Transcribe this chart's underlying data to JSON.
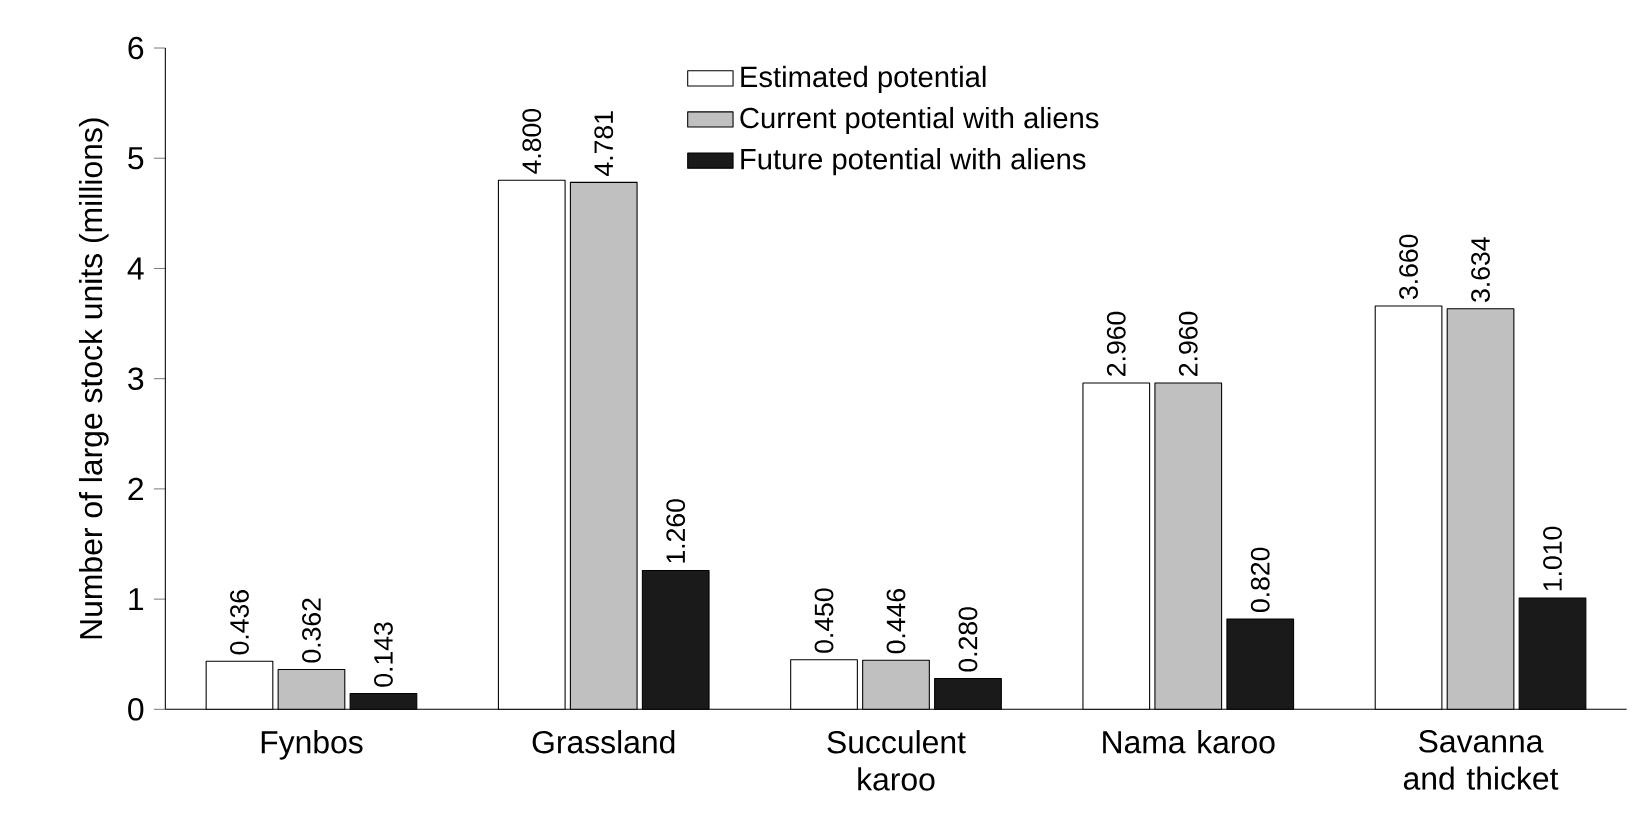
{
  "chart_data": {
    "type": "bar",
    "ylabel": "Number of large stock units (millions)",
    "categories": [
      "Fynbos",
      "Grassland",
      "Succulent karoo",
      "Nama karoo",
      "Savanna and thicket"
    ],
    "series": [
      {
        "name": "Estimated potential",
        "color": "#ffffff",
        "values": [
          0.436,
          4.8,
          0.45,
          2.96,
          3.66
        ],
        "value_labels": [
          "0.436",
          "4.800",
          "0.450",
          "2.960",
          "3.660"
        ]
      },
      {
        "name": "Current potential with aliens",
        "color": "#c0c0c0",
        "values": [
          0.362,
          4.781,
          0.446,
          2.96,
          3.634
        ],
        "value_labels": [
          "0.362",
          "4.781",
          "0.446",
          "2.960",
          "3.634"
        ]
      },
      {
        "name": "Future potential with aliens",
        "color": "#1a1a1a",
        "values": [
          0.143,
          1.26,
          0.28,
          0.82,
          1.01
        ],
        "value_labels": [
          "0.143",
          "1.260",
          "0.280",
          "0.820",
          "1.010"
        ]
      }
    ],
    "ylim": [
      0,
      6
    ],
    "yticks": [
      0,
      1,
      2,
      3,
      4,
      5,
      6
    ],
    "legend": "top",
    "grid": false
  }
}
